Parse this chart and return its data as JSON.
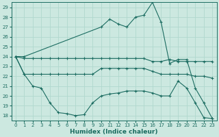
{
  "xlabel": "Humidex (Indice chaleur)",
  "xlim": [
    -0.5,
    23.5
  ],
  "ylim": [
    17.5,
    29.5
  ],
  "yticks": [
    18,
    19,
    20,
    21,
    22,
    23,
    24,
    25,
    26,
    27,
    28,
    29
  ],
  "xticks": [
    0,
    1,
    2,
    3,
    4,
    5,
    6,
    7,
    8,
    9,
    10,
    11,
    12,
    13,
    14,
    15,
    16,
    17,
    18,
    19,
    20,
    21,
    22,
    23
  ],
  "bg_color": "#cce8e0",
  "grid_color": "#b0d8ce",
  "line_color": "#1a6b60",
  "lines": [
    {
      "x": [
        0,
        1,
        10,
        11,
        12,
        13,
        14,
        15,
        16,
        17,
        18,
        19,
        20,
        21,
        22,
        23
      ],
      "y": [
        24.0,
        24.0,
        27.0,
        27.8,
        27.3,
        27.0,
        28.0,
        28.2,
        29.5,
        27.5,
        23.3,
        23.7,
        23.7,
        20.8,
        19.3,
        17.7
      ]
    },
    {
      "x": [
        0,
        1,
        2,
        3,
        4,
        5,
        6,
        7,
        8,
        9,
        10,
        11,
        12,
        13,
        14,
        15,
        16,
        17,
        18,
        19,
        20,
        21,
        22,
        23
      ],
      "y": [
        24.0,
        23.8,
        23.8,
        23.8,
        23.8,
        23.8,
        23.8,
        23.8,
        23.8,
        23.8,
        23.8,
        23.8,
        23.8,
        23.8,
        23.8,
        23.8,
        23.5,
        23.5,
        23.7,
        23.5,
        23.5,
        23.5,
        23.5,
        23.5
      ]
    },
    {
      "x": [
        0,
        1,
        2,
        3,
        4,
        5,
        6,
        7,
        8,
        9,
        10,
        11,
        12,
        13,
        14,
        15,
        16,
        17,
        18,
        19,
        20,
        21,
        22,
        23
      ],
      "y": [
        24.0,
        22.2,
        22.2,
        22.2,
        22.2,
        22.2,
        22.2,
        22.2,
        22.2,
        22.2,
        22.8,
        22.8,
        22.8,
        22.8,
        22.8,
        22.8,
        22.5,
        22.2,
        22.2,
        22.2,
        22.2,
        22.0,
        22.0,
        21.8
      ]
    },
    {
      "x": [
        0,
        1,
        2,
        3,
        4,
        5,
        6,
        7,
        8,
        9,
        10,
        11,
        12,
        13,
        14,
        15,
        16,
        17,
        18,
        19,
        20,
        21,
        22,
        23
      ],
      "y": [
        24.0,
        22.2,
        21.0,
        20.8,
        19.3,
        18.3,
        18.2,
        18.0,
        18.1,
        19.3,
        20.0,
        20.2,
        20.3,
        20.5,
        20.5,
        20.5,
        20.3,
        20.0,
        20.0,
        21.5,
        20.8,
        19.3,
        17.8,
        17.7
      ]
    }
  ]
}
